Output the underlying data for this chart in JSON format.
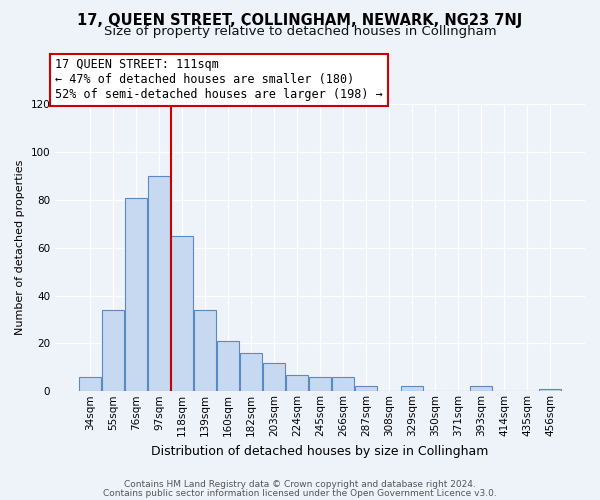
{
  "title": "17, QUEEN STREET, COLLINGHAM, NEWARK, NG23 7NJ",
  "subtitle": "Size of property relative to detached houses in Collingham",
  "xlabel": "Distribution of detached houses by size in Collingham",
  "ylabel": "Number of detached properties",
  "bins": [
    "34sqm",
    "55sqm",
    "76sqm",
    "97sqm",
    "118sqm",
    "139sqm",
    "160sqm",
    "182sqm",
    "203sqm",
    "224sqm",
    "245sqm",
    "266sqm",
    "287sqm",
    "308sqm",
    "329sqm",
    "350sqm",
    "371sqm",
    "393sqm",
    "414sqm",
    "435sqm",
    "456sqm"
  ],
  "values": [
    6,
    34,
    81,
    90,
    65,
    34,
    21,
    16,
    12,
    7,
    6,
    6,
    2,
    0,
    2,
    0,
    0,
    2,
    0,
    0,
    1
  ],
  "bar_color": "#c6d9f0",
  "bar_edge_color": "#5a8abf",
  "annotation_title": "17 QUEEN STREET: 111sqm",
  "annotation_line1": "← 47% of detached houses are smaller (180)",
  "annotation_line2": "52% of semi-detached houses are larger (198) →",
  "annotation_box_color": "#ffffff",
  "annotation_box_edge": "#cc0000",
  "red_line_color": "#cc0000",
  "ylim": [
    0,
    120
  ],
  "yticks": [
    0,
    20,
    40,
    60,
    80,
    100,
    120
  ],
  "footer1": "Contains HM Land Registry data © Crown copyright and database right 2024.",
  "footer2": "Contains public sector information licensed under the Open Government Licence v3.0.",
  "bg_color": "#eef2f9",
  "grid_color": "#ffffff",
  "title_fontsize": 10.5,
  "subtitle_fontsize": 9.5,
  "ylabel_fontsize": 8,
  "xlabel_fontsize": 9,
  "tick_fontsize": 7.5,
  "footer_fontsize": 6.5,
  "annotation_fontsize": 8.5
}
